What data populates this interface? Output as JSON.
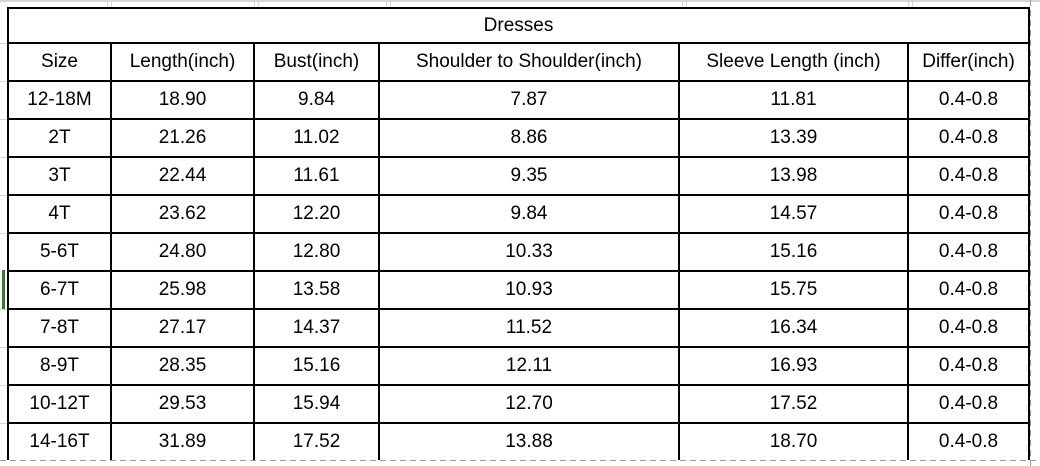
{
  "sheet": {
    "title": "Dresses",
    "columns": [
      "Size",
      "Length(inch)",
      "Bust(inch)",
      "Shoulder to Shoulder(inch)",
      "Sleeve Length (inch)",
      "Differ(inch)"
    ],
    "rows": [
      [
        "12-18M",
        "18.90",
        "9.84",
        "7.87",
        "11.81",
        "0.4-0.8"
      ],
      [
        "2T",
        "21.26",
        "11.02",
        "8.86",
        "13.39",
        "0.4-0.8"
      ],
      [
        "3T",
        "22.44",
        "11.61",
        "9.35",
        "13.98",
        "0.4-0.8"
      ],
      [
        "4T",
        "23.62",
        "12.20",
        "9.84",
        "14.57",
        "0.4-0.8"
      ],
      [
        "5-6T",
        "24.80",
        "12.80",
        "10.33",
        "15.16",
        "0.4-0.8"
      ],
      [
        "6-7T",
        "25.98",
        "13.58",
        "10.93",
        "15.75",
        "0.4-0.8"
      ],
      [
        "7-8T",
        "27.17",
        "14.37",
        "11.52",
        "16.34",
        "0.4-0.8"
      ],
      [
        "8-9T",
        "28.35",
        "15.16",
        "12.11",
        "16.93",
        "0.4-0.8"
      ],
      [
        "10-12T",
        "29.53",
        "15.94",
        "12.70",
        "17.52",
        "0.4-0.8"
      ],
      [
        "14-16T",
        "31.89",
        "17.52",
        "13.88",
        "18.70",
        "0.4-0.8"
      ]
    ],
    "selected_row": "6-7T",
    "colors": {
      "border": "#000000",
      "gridline": "#d6d6d6",
      "page_break": "#9b9b9b",
      "selection": "#2e7d32"
    }
  }
}
